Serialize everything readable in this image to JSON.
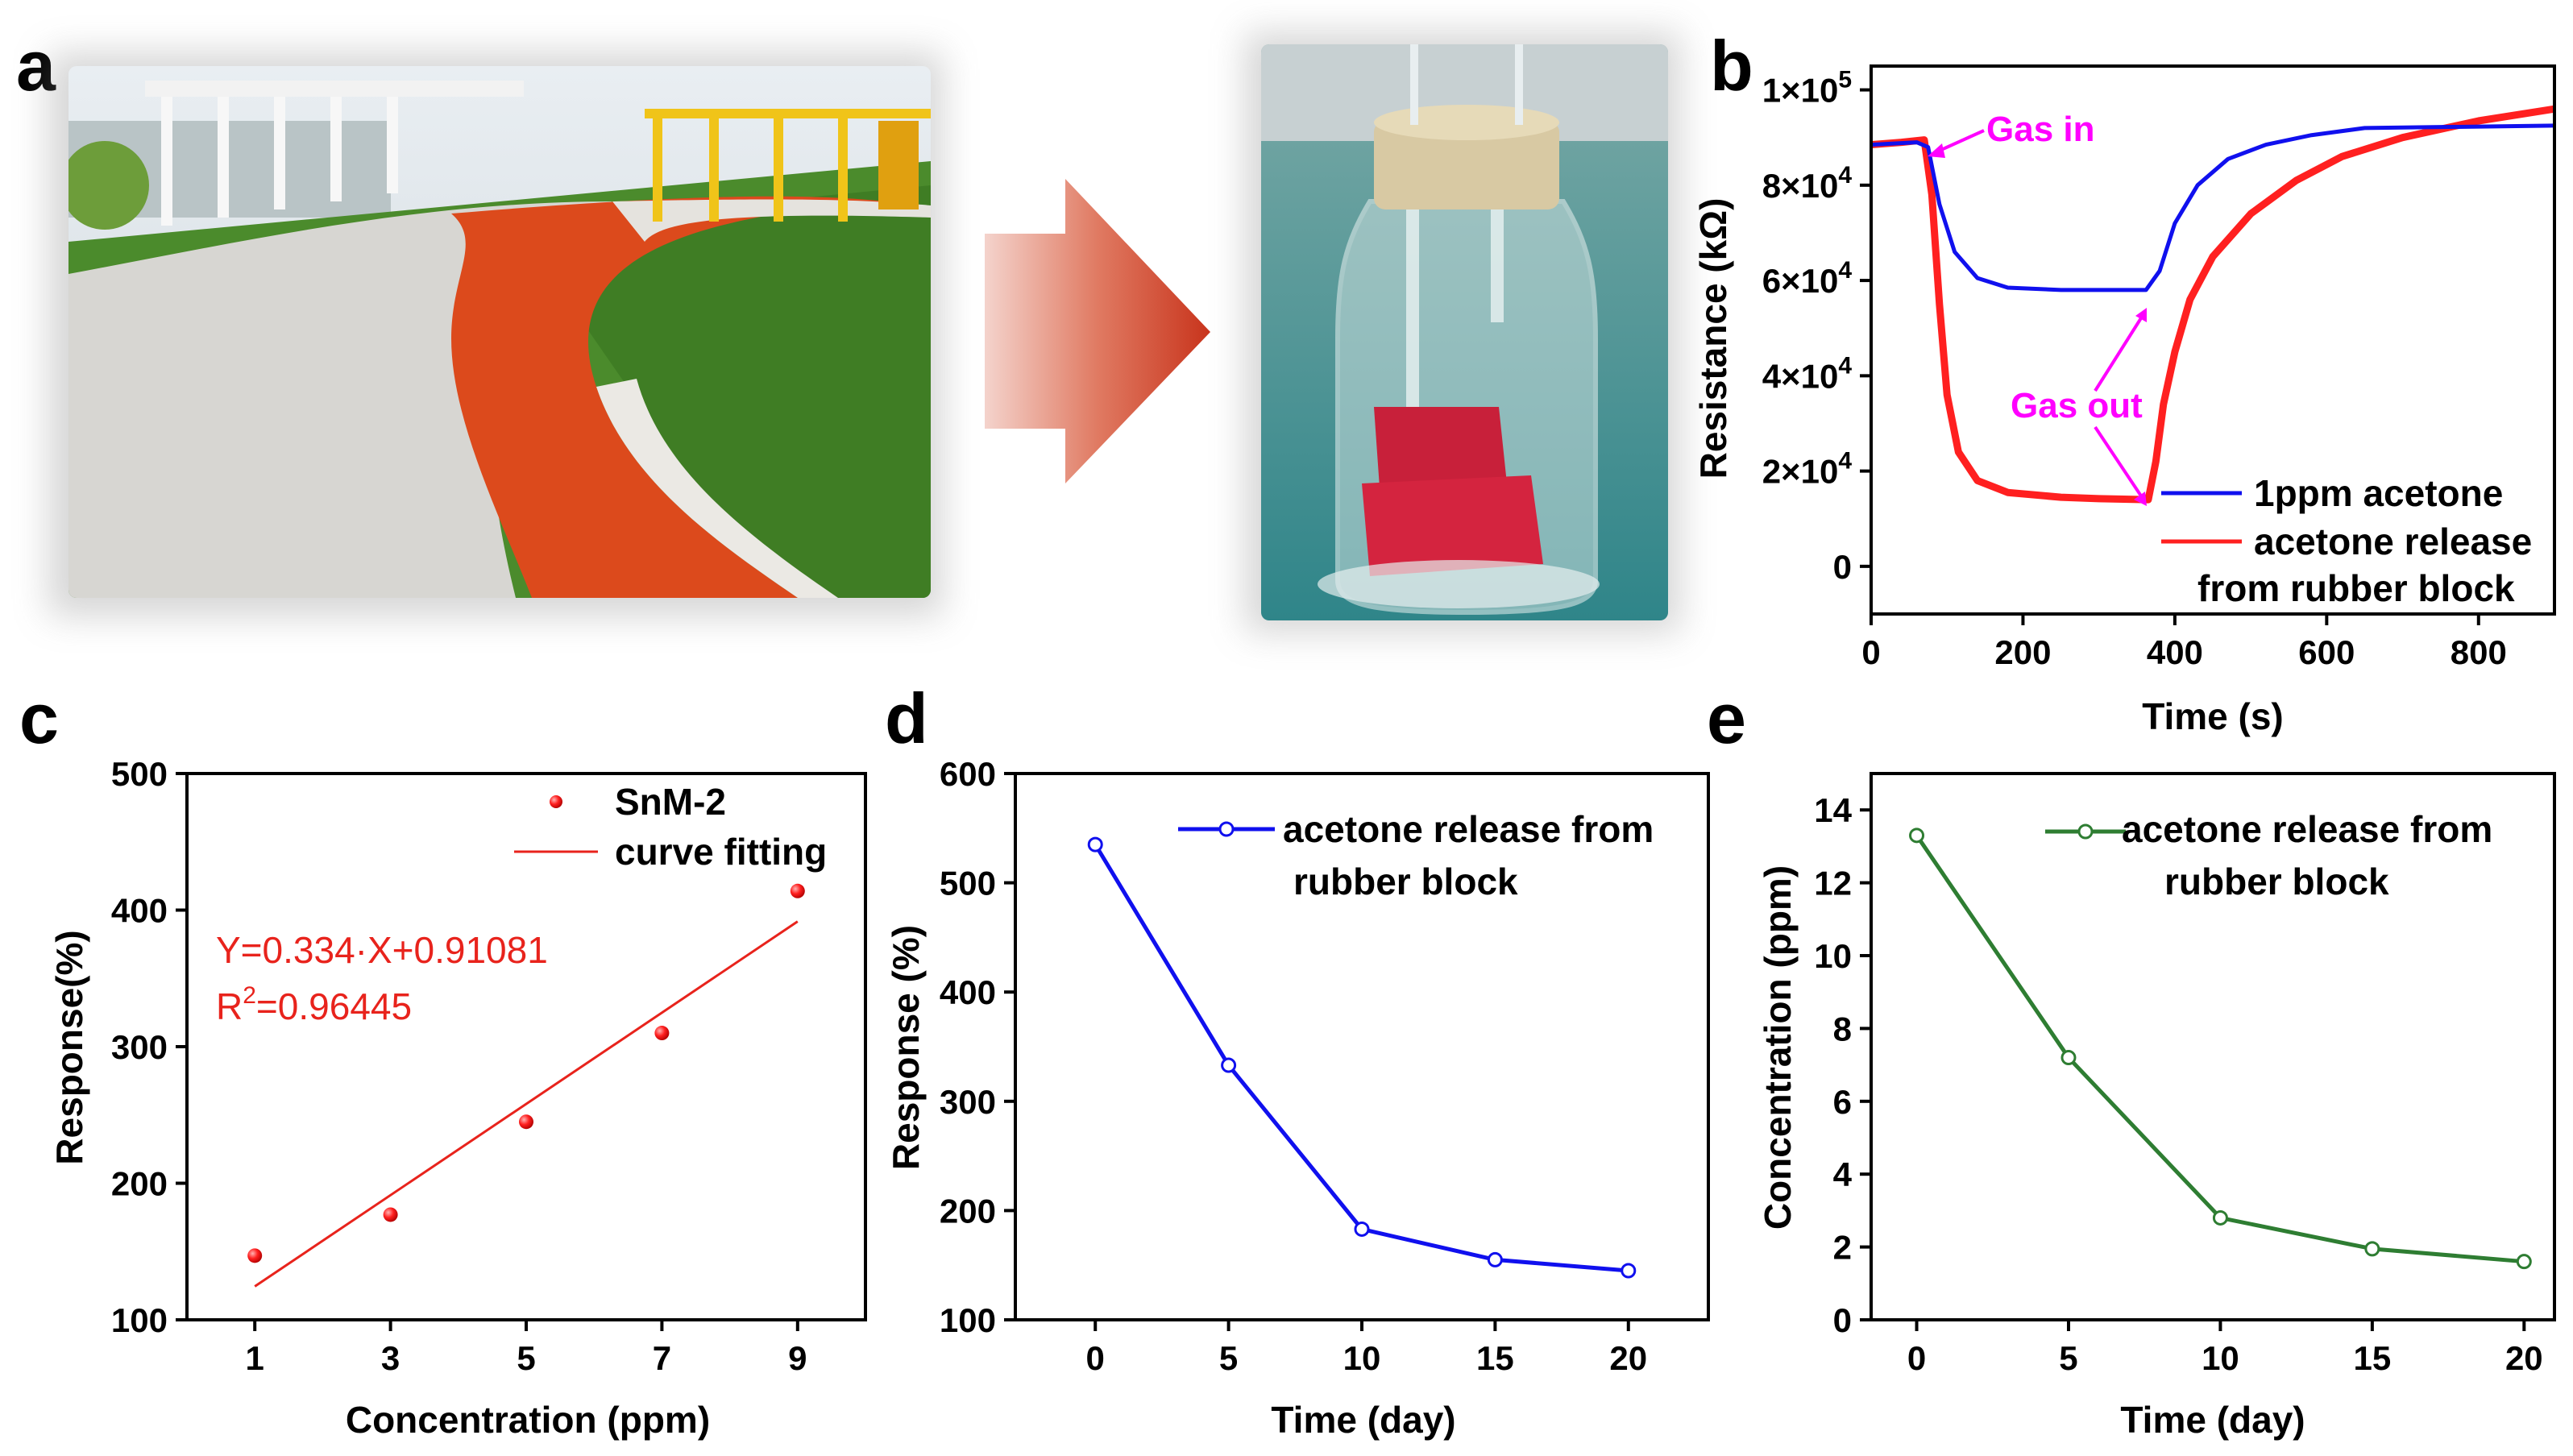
{
  "panels": {
    "a": "a",
    "b": "b",
    "c": "c",
    "d": "d",
    "e": "e"
  },
  "colors": {
    "red": "#ff2020",
    "blue": "#1010ee",
    "green": "#2e7d32",
    "magenta": "#ff00ff",
    "fit_red": "#e8231c"
  },
  "chart_data": [
    {
      "id": "b",
      "type": "line",
      "title": "",
      "xlabel": "Time (s)",
      "ylabel": "Resistance (kΩ)",
      "xlim": [
        0,
        900
      ],
      "ylim": [
        -10000,
        105000
      ],
      "xticks": [
        0,
        200,
        400,
        600,
        800
      ],
      "yticks": [
        0,
        20000,
        40000,
        60000,
        80000,
        100000
      ],
      "ytick_labels": {
        "0": {
          "base": "0",
          "exp": ""
        },
        "20000": {
          "base": "2×10",
          "exp": "4"
        },
        "40000": {
          "base": "4×10",
          "exp": "4"
        },
        "60000": {
          "base": "6×10",
          "exp": "4"
        },
        "80000": {
          "base": "8×10",
          "exp": "4"
        },
        "100000": {
          "base": "1×10",
          "exp": "5"
        }
      },
      "series": [
        {
          "name": "1ppm acetone",
          "color": "#1010ee",
          "x": [
            0,
            60,
            75,
            90,
            110,
            140,
            180,
            250,
            300,
            362,
            380,
            400,
            430,
            470,
            520,
            580,
            650,
            900
          ],
          "y": [
            88500,
            89000,
            88000,
            76000,
            66000,
            60500,
            58500,
            58000,
            58000,
            58000,
            62000,
            72000,
            80000,
            85500,
            88500,
            90500,
            92000,
            92500
          ]
        },
        {
          "name": "acetone release from rubber block",
          "color": "#ff2020",
          "x": [
            0,
            40,
            70,
            80,
            90,
            100,
            115,
            140,
            180,
            250,
            300,
            365,
            375,
            385,
            400,
            420,
            450,
            500,
            560,
            620,
            700,
            800,
            900
          ],
          "y": [
            88500,
            89000,
            89500,
            78000,
            55000,
            36000,
            24000,
            18000,
            15500,
            14500,
            14200,
            14000,
            22000,
            34000,
            45000,
            56000,
            65000,
            74000,
            81000,
            86000,
            90000,
            93500,
            96000
          ]
        }
      ],
      "annotations": [
        "Gas in",
        "Gas out"
      ],
      "legend": [
        "1ppm acetone",
        "acetone release",
        "from rubber block"
      ]
    },
    {
      "id": "c",
      "type": "scatter",
      "title": "",
      "xlabel": "Concentration (ppm)",
      "ylabel": "Response(%)",
      "xlim": [
        0,
        10
      ],
      "ylim": [
        100,
        500
      ],
      "xticks": [
        1,
        3,
        5,
        7,
        9
      ],
      "yticks": [
        100,
        200,
        300,
        400,
        500
      ],
      "series": [
        {
          "name": "SnM-2",
          "color": "#ff2020",
          "x": [
            1,
            3,
            5,
            7,
            9
          ],
          "y": [
            147,
            177,
            245,
            310,
            414
          ]
        }
      ],
      "fit": {
        "name": "curve fitting",
        "slope": 33.4,
        "intercept": 91.081,
        "x_range": [
          1,
          9
        ]
      },
      "equation": "Y=0.334·X+0.91081",
      "r2_base": "R",
      "r2_exp": "2",
      "r2_value": "=0.96445",
      "legend": [
        "SnM-2",
        "curve fitting"
      ]
    },
    {
      "id": "d",
      "type": "line",
      "title": "",
      "xlabel": "Time (day)",
      "ylabel": "Response (%)",
      "xlim": [
        -3,
        23
      ],
      "ylim": [
        100,
        600
      ],
      "xticks": [
        0,
        5,
        10,
        15,
        20
      ],
      "yticks": [
        100,
        200,
        300,
        400,
        500,
        600
      ],
      "series": [
        {
          "name": "acetone release from rubber block",
          "color": "#1010ee",
          "x": [
            0,
            5,
            10,
            15,
            20
          ],
          "y": [
            535,
            333,
            183,
            155,
            145
          ]
        }
      ],
      "legend": [
        "acetone release from",
        "rubber block"
      ]
    },
    {
      "id": "e",
      "type": "line",
      "title": "",
      "xlabel": "Time (day)",
      "ylabel": "Concentration (ppm)",
      "xlim": [
        -1.5,
        21
      ],
      "ylim": [
        0,
        15
      ],
      "xticks": [
        0,
        5,
        10,
        15,
        20
      ],
      "yticks": [
        0,
        2,
        4,
        6,
        8,
        10,
        12,
        14
      ],
      "series": [
        {
          "name": "acetone release from rubber block",
          "color": "#2e7d32",
          "x": [
            0,
            5,
            10,
            15,
            20
          ],
          "y": [
            13.3,
            7.2,
            2.8,
            1.95,
            1.6
          ]
        }
      ],
      "legend": [
        "acetone release from",
        "rubber block"
      ]
    }
  ]
}
